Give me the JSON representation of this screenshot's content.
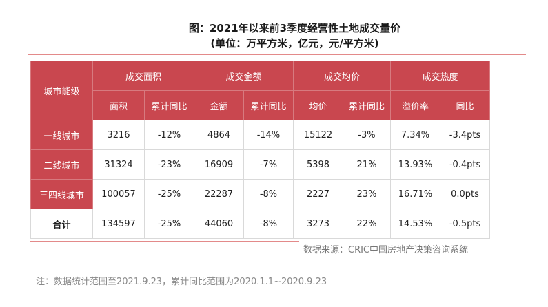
{
  "title": {
    "line1": "图：2021年以来前3季度经营性土地成交量价",
    "line2": "(单位：万平方米，亿元，元/平方米)"
  },
  "table": {
    "corner": "城市能级",
    "groups": [
      "成交面积",
      "成交金额",
      "成交均价",
      "成交热度"
    ],
    "subheaders": [
      "面积",
      "累计同比",
      "金额",
      "累计同比",
      "均价",
      "累计同比",
      "溢价率",
      "同比"
    ],
    "rows": [
      {
        "label": "一线城市",
        "cells": [
          "3216",
          "-12%",
          "4864",
          "-14%",
          "15122",
          "-3%",
          "7.34%",
          "-3.4pts"
        ]
      },
      {
        "label": "二线城市",
        "cells": [
          "31324",
          "-23%",
          "16909",
          "-7%",
          "5398",
          "21%",
          "13.93%",
          "-0.4pts"
        ]
      },
      {
        "label": "三四线城市",
        "cells": [
          "100057",
          "-25%",
          "22287",
          "-8%",
          "2227",
          "23%",
          "16.71%",
          "0.0pts"
        ]
      },
      {
        "label": "合计",
        "cells": [
          "134597",
          "-25%",
          "44060",
          "-8%",
          "3273",
          "22%",
          "14.53%",
          "-0.5pts"
        ]
      }
    ]
  },
  "source": "数据来源：CRIC中国房地产决策咨询系统",
  "note": "注：数据统计范围至2021.9.23，累计同比范围为2020.1.1~2020.9.23",
  "colors": {
    "header_red": "#c9474f",
    "accent_line": "#e38a8a"
  }
}
